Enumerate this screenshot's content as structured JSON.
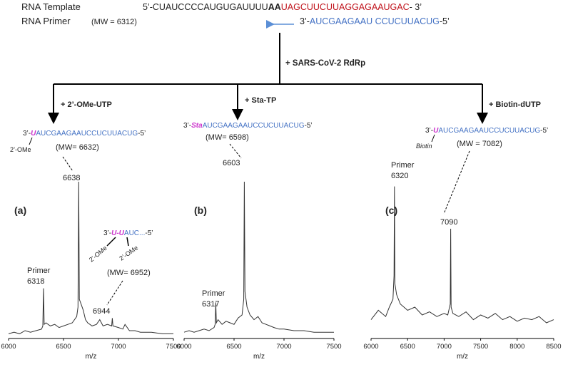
{
  "diagram": {
    "template": {
      "label": "RNA Template",
      "prefix": "5’-CUAUCCCCAUGUGAUUUU",
      "bold": "AA",
      "red": "UAGCUUCUUAGGAGAAUGAC",
      "suffix": "- 3’"
    },
    "primer": {
      "label": "RNA Primer",
      "mw": "(MW = 6312)",
      "prefix": "3’-",
      "seq": "AUCGAAGAAU CCUCUUACUG",
      "suffix": "-5’"
    },
    "enzyme": "+ SARS-CoV-2 RdRp",
    "branches": [
      {
        "reagent": "+ 2’-OMe-UTP",
        "product": [
          "3’-",
          "U",
          "AUCGAAGAAUCCUCUUACUG",
          "-5’"
        ],
        "mod": "2’-OMe",
        "mw": "(MW= 6632)"
      },
      {
        "reagent": "+ Sta-TP",
        "product": [
          "3’-",
          "Sta",
          "AUCGAAGAAUCCUCUUACUG",
          "-5’"
        ],
        "mw": "(MW= 6598)"
      },
      {
        "reagent": "+ Biotin-dUTP",
        "product": [
          "3’-",
          "U",
          "AUCGAAGAAUCCUCUUACUG",
          "-5’"
        ],
        "mod": "Biotin",
        "mw": "(MW = 7082)"
      }
    ],
    "inset": {
      "product": [
        "3’-",
        "U-U",
        "AUC...",
        "-5’"
      ],
      "mods": [
        "2’-OMe",
        "2’-OMe"
      ],
      "mw": "(MW= 6952)"
    }
  },
  "chart_data": [
    {
      "type": "line",
      "panel": "(a)",
      "xlabel": "m/z",
      "color": "#333333",
      "xlim": [
        6000,
        7500
      ],
      "xticks": [
        6000,
        6500,
        7000,
        7500
      ],
      "ylim": [
        0,
        100
      ],
      "x": [
        6000,
        6050,
        6100,
        6150,
        6200,
        6250,
        6300,
        6312,
        6318,
        6324,
        6340,
        6380,
        6420,
        6460,
        6500,
        6540,
        6580,
        6620,
        6632,
        6638,
        6644,
        6660,
        6680,
        6700,
        6720,
        6760,
        6800,
        6830,
        6860,
        6900,
        6938,
        6944,
        6950,
        7000,
        7040,
        7060,
        7100,
        7150,
        7200,
        7300,
        7400,
        7500
      ],
      "values": [
        3,
        4,
        3,
        5,
        4,
        5,
        6,
        8,
        32,
        9,
        10,
        8,
        9,
        7,
        8,
        9,
        10,
        14,
        20,
        100,
        25,
        22,
        18,
        12,
        10,
        8,
        9,
        12,
        8,
        9,
        8,
        13,
        8,
        7,
        6,
        9,
        5,
        5,
        4,
        4,
        3,
        3
      ],
      "annotations": [
        "6638",
        "Primer",
        "6318",
        "6944"
      ]
    },
    {
      "type": "line",
      "panel": "(b)",
      "xlabel": "m/z",
      "color": "#333333",
      "xlim": [
        6000,
        7500
      ],
      "xticks": [
        6000,
        6500,
        7000,
        7500
      ],
      "ylim": [
        0,
        100
      ],
      "x": [
        6000,
        6050,
        6100,
        6150,
        6200,
        6250,
        6300,
        6311,
        6317,
        6323,
        6340,
        6380,
        6420,
        6460,
        6500,
        6540,
        6580,
        6597,
        6603,
        6609,
        6630,
        6660,
        6700,
        6740,
        6780,
        6820,
        6860,
        6900,
        6950,
        7000,
        7100,
        7200,
        7300,
        7400,
        7500
      ],
      "values": [
        4,
        5,
        4,
        5,
        6,
        5,
        7,
        9,
        23,
        10,
        12,
        9,
        11,
        10,
        9,
        13,
        15,
        25,
        100,
        30,
        20,
        15,
        12,
        14,
        10,
        9,
        8,
        7,
        6,
        6,
        5,
        5,
        4,
        4,
        4
      ],
      "annotations": [
        "6603",
        "Primer",
        "6317"
      ]
    },
    {
      "type": "line",
      "panel": "(c)",
      "xlabel": "m/z",
      "color": "#333333",
      "xlim": [
        6000,
        8500
      ],
      "xticks": [
        6000,
        6500,
        7000,
        7500,
        8000,
        8500
      ],
      "ylim": [
        0,
        100
      ],
      "x": [
        6000,
        6100,
        6200,
        6250,
        6300,
        6314,
        6320,
        6326,
        6350,
        6400,
        6500,
        6600,
        6700,
        6800,
        6900,
        7000,
        7050,
        7084,
        7090,
        7096,
        7120,
        7200,
        7300,
        7400,
        7500,
        7600,
        7700,
        7800,
        7900,
        8000,
        8100,
        8200,
        8300,
        8400,
        8500
      ],
      "values": [
        12,
        18,
        14,
        20,
        25,
        40,
        97,
        35,
        28,
        22,
        18,
        20,
        15,
        17,
        14,
        16,
        15,
        22,
        70,
        20,
        16,
        14,
        17,
        12,
        15,
        13,
        16,
        12,
        14,
        11,
        13,
        12,
        14,
        10,
        12
      ],
      "annotations": [
        "Primer",
        "6320",
        "7090"
      ]
    }
  ]
}
